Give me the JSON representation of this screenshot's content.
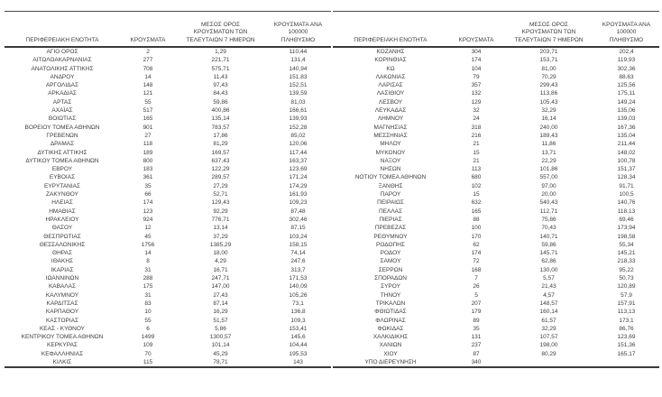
{
  "page": {
    "background_color": "#ffffff",
    "text_color": "#3d3d3d"
  },
  "headers": {
    "region": "ΠΕΡΙΦΕΡΕΙΑΚΗ ΕΝΟΤΗΤΑ",
    "cases": "ΚΡΟΥΣΜΑΤΑ",
    "avg7": "ΜΕΣΟΣ ΟΡΟΣ\nΚΡΟΥΣΜΑΤΩΝ ΤΩΝ\nΤΕΛΕΥΤΑΙΩΝ 7 ΗΜΕΡΩΝ",
    "per100k": "ΚΡΟΥΣΜΑΤΑ ΑΝΑ 100000\nΠΛΗΘΥΣΜΟ"
  },
  "left_table": {
    "rows": [
      [
        "ΑΓΙΟ ΟΡΟΣ",
        "2",
        "1,29",
        "110,44"
      ],
      [
        "ΑΙΤΩΛΟΑΚΑΡΝΑΝΙΑΣ",
        "277",
        "221,71",
        "131,4"
      ],
      [
        "ΑΝΑΤΟΛΙΚΗΣ ΑΤΤΙΚΗΣ",
        "708",
        "575,71",
        "140,94"
      ],
      [
        "ΑΝΔΡΟΥ",
        "14",
        "11,43",
        "151,83"
      ],
      [
        "ΑΡΓΟΛΙΔΑΣ",
        "148",
        "97,43",
        "152,51"
      ],
      [
        "ΑΡΚΑΔΙΑΣ",
        "121",
        "84,43",
        "139,59"
      ],
      [
        "ΑΡΤΑΣ",
        "55",
        "59,86",
        "81,03"
      ],
      [
        "ΑΧΑΪΑΣ",
        "517",
        "400,86",
        "166,61"
      ],
      [
        "ΒΟΙΩΤΙΑΣ",
        "165",
        "135,14",
        "139,93"
      ],
      [
        "ΒΟΡΕΙΟΥ ΤΟΜΕΑ ΑΘΗΝΩΝ",
        "901",
        "783,57",
        "152,28"
      ],
      [
        "ΓΡΕΒΕΝΩΝ",
        "27",
        "17,86",
        "85,02"
      ],
      [
        "ΔΡΑΜΑΣ",
        "118",
        "81,29",
        "120,06"
      ],
      [
        "ΔΥΤΙΚΗΣ ΑΤΤΙΚΗΣ",
        "189",
        "169,57",
        "117,44"
      ],
      [
        "ΔΥΤΙΚΟΥ ΤΟΜΕΑ ΑΘΗΝΩΝ",
        "800",
        "637,43",
        "163,37"
      ],
      [
        "ΕΒΡΟΥ",
        "183",
        "122,29",
        "123,69"
      ],
      [
        "ΕΥΒΟΙΑΣ",
        "361",
        "289,57",
        "171,24"
      ],
      [
        "ΕΥΡΥΤΑΝΙΑΣ",
        "35",
        "27,29",
        "174,29"
      ],
      [
        "ΖΑΚΥΝΘΟΥ",
        "66",
        "52,71",
        "161,93"
      ],
      [
        "ΗΛΕΙΑΣ",
        "174",
        "129,43",
        "109,23"
      ],
      [
        "ΗΜΑΘΙΑΣ",
        "123",
        "92,29",
        "87,48"
      ],
      [
        "ΗΡΑΚΛΕΙΟΥ",
        "924",
        "776,71",
        "302,46"
      ],
      [
        "ΘΑΣΟΥ",
        "12",
        "13,14",
        "87,15"
      ],
      [
        "ΘΕΣΠΡΩΤΙΑΣ",
        "45",
        "37,29",
        "103,24"
      ],
      [
        "ΘΕΣΣΑΛΟΝΙΚΗΣ",
        "1756",
        "1385,29",
        "158,15"
      ],
      [
        "ΘΗΡΑΣ",
        "14",
        "18,00",
        "74,14"
      ],
      [
        "ΙΘΑΚΗΣ",
        "8",
        "4,29",
        "247,6"
      ],
      [
        "ΙΚΑΡΙΑΣ",
        "31",
        "16,71",
        "313,7"
      ],
      [
        "ΙΩΑΝΝΙΝΩΝ",
        "288",
        "247,71",
        "171,53"
      ],
      [
        "ΚΑΒΑΛΑΣ",
        "175",
        "147,00",
        "140,09"
      ],
      [
        "ΚΑΛΥΜΝΟΥ",
        "31",
        "27,43",
        "105,26"
      ],
      [
        "ΚΑΡΔΙΤΣΑΣ",
        "83",
        "87,14",
        "73,1"
      ],
      [
        "ΚΑΡΠΑΘΟΥ",
        "10",
        "16,29",
        "136,8"
      ],
      [
        "ΚΑΣΤΟΡΙΑΣ",
        "55",
        "51,57",
        "109,3"
      ],
      [
        "ΚΕΑΣ - ΚΥΘΝΟΥ",
        "6",
        "5,86",
        "153,41"
      ],
      [
        "ΚΕΝΤΡΙΚΟΥ ΤΟΜΕΑ ΑΘΗΝΩΝ",
        "1499",
        "1300,57",
        "145,6"
      ],
      [
        "ΚΕΡΚΥΡΑΣ",
        "109",
        "101,14",
        "104,44"
      ],
      [
        "ΚΕΦΑΛΛΗΝΙΑΣ",
        "70",
        "45,29",
        "195,53"
      ],
      [
        "ΚΙΛΚΙΣ",
        "115",
        "78,71",
        "143"
      ]
    ]
  },
  "right_table": {
    "rows": [
      [
        "ΚΟΖΑΝΗΣ",
        "304",
        "203,71",
        "202,4"
      ],
      [
        "ΚΟΡΙΝΘΙΑΣ",
        "174",
        "153,71",
        "119,93"
      ],
      [
        "ΚΩ",
        "104",
        "81,00",
        "302,36"
      ],
      [
        "ΛΑΚΩΝΙΑΣ",
        "79",
        "70,29",
        "88,63"
      ],
      [
        "ΛΑΡΙΣΑΣ",
        "357",
        "299,43",
        "125,56"
      ],
      [
        "ΛΑΣΙΘΙΟΥ",
        "132",
        "113,86",
        "175,11"
      ],
      [
        "ΛΕΣΒΟΥ",
        "129",
        "105,43",
        "149,24"
      ],
      [
        "ΛΕΥΚΑΔΑΣ",
        "32",
        "32,29",
        "135,06"
      ],
      [
        "ΛΗΜΝΟΥ",
        "24",
        "16,14",
        "139,03"
      ],
      [
        "ΜΑΓΝΗΣΙΑΣ",
        "318",
        "240,00",
        "167,36"
      ],
      [
        "ΜΕΣΣΗΝΙΑΣ",
        "216",
        "189,43",
        "135,04"
      ],
      [
        "ΜΗΛΟΥ",
        "21",
        "11,86",
        "211,44"
      ],
      [
        "ΜΥΚΟΝΟΥ",
        "15",
        "13,71",
        "148,02"
      ],
      [
        "ΝΑΞΟΥ",
        "21",
        "22,29",
        "100,78"
      ],
      [
        "ΝΗΣΩΝ",
        "113",
        "101,86",
        "151,37"
      ],
      [
        "ΝΟΤΙΟΥ ΤΟΜΕΑ ΑΘΗΝΩΝ",
        "680",
        "557,00",
        "128,34"
      ],
      [
        "ΞΑΝΘΗΣ",
        "102",
        "97,00",
        "91,71"
      ],
      [
        "ΠΑΡΟΥ",
        "15",
        "20,00",
        "100,5"
      ],
      [
        "ΠΕΙΡΑΙΩΣ",
        "632",
        "540,43",
        "140,76"
      ],
      [
        "ΠΕΛΛΑΣ",
        "165",
        "112,71",
        "118,13"
      ],
      [
        "ΠΙΕΡΙΑΣ",
        "88",
        "75,86",
        "69,46"
      ],
      [
        "ΠΡΕΒΕΖΑΣ",
        "100",
        "70,43",
        "173,94"
      ],
      [
        "ΡΕΘΥΜΝΟΥ",
        "170",
        "140,71",
        "198,58"
      ],
      [
        "ΡΟΔΟΠΗΣ",
        "62",
        "59,86",
        "55,34"
      ],
      [
        "ΡΟΔΟΥ",
        "174",
        "145,71",
        "145,21"
      ],
      [
        "ΣΑΜΟΥ",
        "72",
        "62,86",
        "218,33"
      ],
      [
        "ΣΕΡΡΩΝ",
        "168",
        "130,00",
        "95,22"
      ],
      [
        "ΣΠΟΡΑΔΩΝ",
        "7",
        "5,57",
        "50,73"
      ],
      [
        "ΣΥΡΟΥ",
        "26",
        "21,43",
        "120,89"
      ],
      [
        "ΤΗΝΟΥ",
        "5",
        "4,57",
        "57,9"
      ],
      [
        "ΤΡΙΚΑΛΩΝ",
        "207",
        "148,57",
        "157,91"
      ],
      [
        "ΦΘΙΩΤΙΔΑΣ",
        "179",
        "160,14",
        "113,13"
      ],
      [
        "ΦΛΩΡΙΝΑΣ",
        "89",
        "61,57",
        "173,1"
      ],
      [
        "ΦΩΚΙΔΑΣ",
        "35",
        "32,29",
        "86,76"
      ],
      [
        "ΧΑΛΚΙΔΙΚΗΣ",
        "131",
        "107,57",
        "123,69"
      ],
      [
        "ΧΑΝΙΩΝ",
        "237",
        "198,00",
        "151,36"
      ],
      [
        "ΧΙΟΥ",
        "87",
        "80,29",
        "165,17"
      ],
      [
        "ΥΠΟ ΔΙΕΡΕΥΝΗΣΗ",
        "340",
        "",
        ""
      ]
    ]
  }
}
